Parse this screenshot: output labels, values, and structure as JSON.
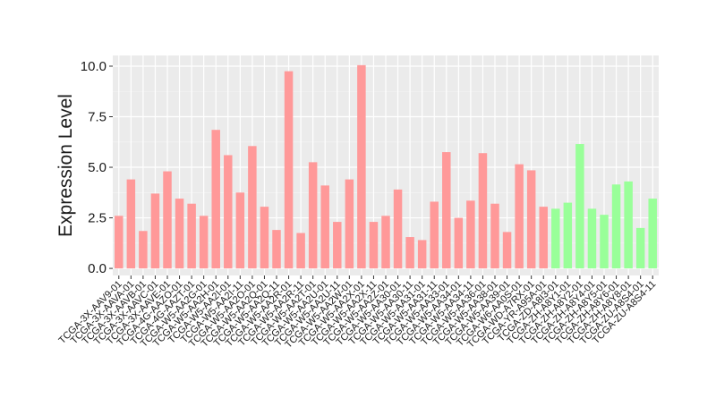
{
  "chart_data": {
    "type": "bar",
    "y_label": "Expression Level",
    "categories": [
      "TCGA-3X-AAV9-01",
      "TCGA-3X-AAVA-01",
      "TCGA-3X-AAVB-01",
      "TCGA-3X-AAVC-01",
      "TCGA-3X-AAVE-01",
      "TCGA-4G-AAZO-01",
      "TCGA-4G-AAZT-01",
      "TCGA-W5-AA2G-01",
      "TCGA-W5-AA2H-01",
      "TCGA-W5-AA2I-01",
      "TCGA-W5-AA2I-11",
      "TCGA-W5-AA2O-01",
      "TCGA-W5-AA2Q-01",
      "TCGA-W5-AA2Q-11",
      "TCGA-W5-AA2R-01",
      "TCGA-W5-AA2R-11",
      "TCGA-W5-AA2T-01",
      "TCGA-W5-AA2U-01",
      "TCGA-W5-AA2U-11",
      "TCGA-W5-AA2W-01",
      "TCGA-W5-AA2X-01",
      "TCGA-W5-AA2X-11",
      "TCGA-W5-AA2Z-01",
      "TCGA-W5-AA30-01",
      "TCGA-W5-AA30-11",
      "TCGA-W5-AA31-01",
      "TCGA-W5-AA31-11",
      "TCGA-W5-AA33-01",
      "TCGA-W5-AA34-01",
      "TCGA-W5-AA34-11",
      "TCGA-W5-AA36-01",
      "TCGA-W5-AA38-01",
      "TCGA-W5-AA39-01",
      "TCGA-W6-AA0S-01",
      "TCGA-WD-A7RX-01",
      "TCGA-YR-A95A-01",
      "TCGA-ZD-A8I3-01",
      "TCGA-ZH-A8Y1-01",
      "TCGA-ZH-A8Y2-01",
      "TCGA-ZH-A8Y4-01",
      "TCGA-ZH-A8Y5-01",
      "TCGA-ZH-A8Y6-01",
      "TCGA-ZH-A8Y8-01",
      "TCGA-ZU-A8S4-01",
      "TCGA-ZU-A8S4-11"
    ],
    "values": [
      2.6,
      4.4,
      1.85,
      3.7,
      4.8,
      3.45,
      3.2,
      2.6,
      6.85,
      5.6,
      3.75,
      6.05,
      3.05,
      1.9,
      9.75,
      1.75,
      5.25,
      4.1,
      2.3,
      4.4,
      10.05,
      2.3,
      2.6,
      3.9,
      1.55,
      1.4,
      3.3,
      5.75,
      2.5,
      3.35,
      5.7,
      3.2,
      1.8,
      5.15,
      4.85,
      3.05,
      2.95,
      3.25,
      6.15,
      2.95,
      2.65,
      4.15,
      4.3,
      2.0,
      3.45
    ],
    "colors": [
      "#ff9999",
      "#ff9999",
      "#ff9999",
      "#ff9999",
      "#ff9999",
      "#ff9999",
      "#ff9999",
      "#ff9999",
      "#ff9999",
      "#ff9999",
      "#ff9999",
      "#ff9999",
      "#ff9999",
      "#ff9999",
      "#ff9999",
      "#ff9999",
      "#ff9999",
      "#ff9999",
      "#ff9999",
      "#ff9999",
      "#ff9999",
      "#ff9999",
      "#ff9999",
      "#ff9999",
      "#ff9999",
      "#ff9999",
      "#ff9999",
      "#ff9999",
      "#ff9999",
      "#ff9999",
      "#ff9999",
      "#ff9999",
      "#ff9999",
      "#ff9999",
      "#ff9999",
      "#ff9999",
      "#99ff99",
      "#99ff99",
      "#99ff99",
      "#99ff99",
      "#99ff99",
      "#99ff99",
      "#99ff99",
      "#99ff99",
      "#99ff99"
    ],
    "ylim": [
      -0.35,
      10.53
    ],
    "yticks": [
      {
        "value": 0,
        "label": "0.0"
      },
      {
        "value": 2.5,
        "label": "2.5"
      },
      {
        "value": 5,
        "label": "5.0"
      },
      {
        "value": 7.5,
        "label": "7.5"
      },
      {
        "value": 10,
        "label": "10.0"
      }
    ],
    "grid": true
  }
}
